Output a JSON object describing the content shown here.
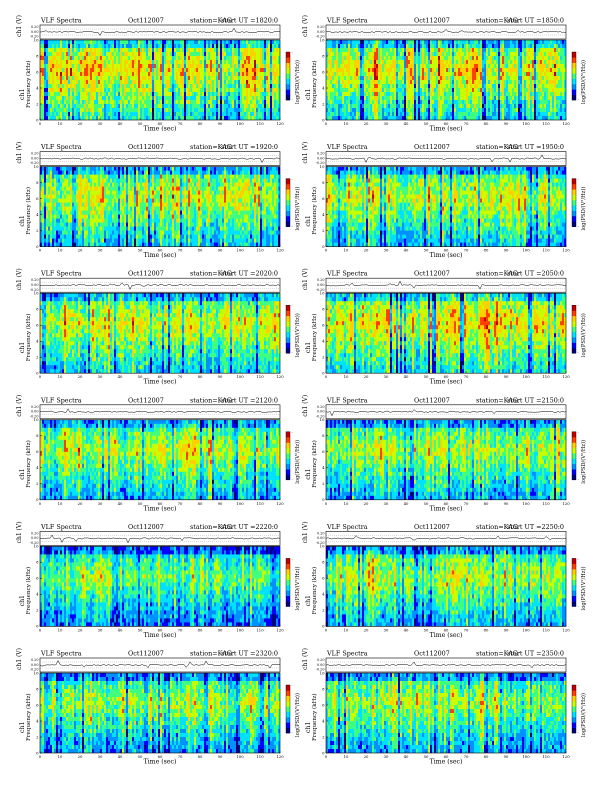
{
  "page": {
    "background": "#ffffff"
  },
  "colors": {
    "colormap": [
      "#00007a",
      "#0000ff",
      "#0090ff",
      "#00e0ff",
      "#40ff80",
      "#c8ff00",
      "#ffd000",
      "#ff4000",
      "#c00000"
    ],
    "trace": "#000000",
    "grid": "#000000"
  },
  "labels": {
    "ch_axis": "ch1 (V)",
    "freq_axis": "Frequency (kHz)",
    "time_axis": "Time (sec)",
    "colorbar_label": "log(PSD/(V²/Hz))",
    "ch_ticks": [
      "0.20",
      "0.00",
      "-0.20"
    ],
    "freq_ticks": [
      "0",
      "2",
      "4",
      "6",
      "8",
      "10"
    ],
    "time_ticks": [
      "0",
      "10",
      "20",
      "30",
      "40",
      "50",
      "60",
      "70",
      "80",
      "90",
      "100",
      "110",
      "120"
    ],
    "cb_tick_top": "-",
    "cb_tick_bottom": "-"
  },
  "chart_data": [
    {
      "type": "heatmap",
      "title_left": "VLF Spectra",
      "date": "Oct112007",
      "station": "station=KAG",
      "start": "start UT =1820:0",
      "xlim": [
        0,
        120
      ],
      "ylim": [
        0,
        10
      ],
      "ch_ylim": [
        -0.2,
        0.2
      ],
      "intensity": [
        0.62,
        0.55,
        0.7,
        0.5,
        0.66,
        0.58,
        0.61,
        0.68,
        0.6,
        0.52,
        0.64,
        0.57
      ]
    },
    {
      "type": "heatmap",
      "title_left": "VLF Spectra",
      "date": "Oct112007",
      "station": "station=KAG",
      "start": "start UT =1850:0",
      "xlim": [
        0,
        120
      ],
      "ylim": [
        0,
        10
      ],
      "ch_ylim": [
        -0.2,
        0.2
      ],
      "intensity": [
        0.5,
        0.58,
        0.66,
        0.52,
        0.6,
        0.63,
        0.55,
        0.69,
        0.57,
        0.5,
        0.62,
        0.56
      ]
    },
    {
      "type": "heatmap",
      "title_left": "VLF Spectra",
      "date": "Oct112007",
      "station": "station=KAG",
      "start": "start UT =1920:0",
      "xlim": [
        0,
        120
      ],
      "ylim": [
        0,
        10
      ],
      "ch_ylim": [
        -0.2,
        0.2
      ],
      "intensity": [
        0.45,
        0.5,
        0.56,
        0.48,
        0.52,
        0.47,
        0.55,
        0.5,
        0.46,
        0.53,
        0.49,
        0.51
      ]
    },
    {
      "type": "heatmap",
      "title_left": "VLF Spectra",
      "date": "Oct112007",
      "station": "station=KAG",
      "start": "start UT =1950:0",
      "xlim": [
        0,
        120
      ],
      "ylim": [
        0,
        10
      ],
      "ch_ylim": [
        -0.2,
        0.2
      ],
      "intensity": [
        0.44,
        0.48,
        0.53,
        0.5,
        0.46,
        0.52,
        0.49,
        0.55,
        0.47,
        0.5,
        0.45,
        0.48
      ]
    },
    {
      "type": "heatmap",
      "title_left": "VLF Spectra",
      "date": "Oct112007",
      "station": "station=KAG",
      "start": "start UT =2020:0",
      "xlim": [
        0,
        120
      ],
      "ylim": [
        0,
        10
      ],
      "ch_ylim": [
        -0.2,
        0.2
      ],
      "intensity": [
        0.5,
        0.55,
        0.52,
        0.6,
        0.57,
        0.54,
        0.58,
        0.62,
        0.53,
        0.56,
        0.51,
        0.55
      ]
    },
    {
      "type": "heatmap",
      "title_left": "VLF Spectra",
      "date": "Oct112007",
      "station": "station=KAG",
      "start": "start UT =2050:0",
      "xlim": [
        0,
        120
      ],
      "ylim": [
        0,
        10
      ],
      "ch_ylim": [
        -0.2,
        0.2
      ],
      "intensity": [
        0.58,
        0.63,
        0.6,
        0.66,
        0.55,
        0.62,
        0.68,
        0.6,
        0.64,
        0.57,
        0.61,
        0.59
      ]
    },
    {
      "type": "heatmap",
      "title_left": "VLF Spectra",
      "date": "Oct112007",
      "station": "station=KAG",
      "start": "start UT =2120:0",
      "xlim": [
        0,
        120
      ],
      "ylim": [
        0,
        10
      ],
      "ch_ylim": [
        -0.2,
        0.2
      ],
      "intensity": [
        0.42,
        0.5,
        0.46,
        0.52,
        0.44,
        0.55,
        0.48,
        0.6,
        0.5,
        0.45,
        0.52,
        0.47
      ]
    },
    {
      "type": "heatmap",
      "title_left": "VLF Spectra",
      "date": "Oct112007",
      "station": "station=KAG",
      "start": "start UT =2150:0",
      "xlim": [
        0,
        120
      ],
      "ylim": [
        0,
        10
      ],
      "ch_ylim": [
        -0.2,
        0.2
      ],
      "intensity": [
        0.38,
        0.45,
        0.5,
        0.42,
        0.46,
        0.52,
        0.44,
        0.48,
        0.4,
        0.5,
        0.43,
        0.46
      ]
    },
    {
      "type": "heatmap",
      "title_left": "VLF Spectra",
      "date": "Oct112007",
      "station": "station=KAG",
      "start": "start UT =2220:0",
      "xlim": [
        0,
        120
      ],
      "ylim": [
        0,
        10
      ],
      "ch_ylim": [
        -0.2,
        0.2
      ],
      "intensity": [
        0.35,
        0.38,
        0.42,
        0.36,
        0.4,
        0.34,
        0.39,
        0.37,
        0.41,
        0.35,
        0.38,
        0.36
      ]
    },
    {
      "type": "heatmap",
      "title_left": "VLF Spectra",
      "date": "Oct112007",
      "station": "station=KAG",
      "start": "start UT =2250:0",
      "xlim": [
        0,
        120
      ],
      "ylim": [
        0,
        10
      ],
      "ch_ylim": [
        -0.2,
        0.2
      ],
      "intensity": [
        0.4,
        0.46,
        0.5,
        0.43,
        0.48,
        0.45,
        0.52,
        0.47,
        0.5,
        0.44,
        0.49,
        0.42
      ]
    },
    {
      "type": "heatmap",
      "title_left": "VLF Spectra",
      "date": "Oct112007",
      "station": "station=KAG",
      "start": "start UT =2320:0",
      "xlim": [
        0,
        120
      ],
      "ylim": [
        0,
        10
      ],
      "ch_ylim": [
        -0.2,
        0.2
      ],
      "intensity": [
        0.36,
        0.42,
        0.48,
        0.4,
        0.45,
        0.39,
        0.44,
        0.41,
        0.46,
        0.38,
        0.43,
        0.4
      ]
    },
    {
      "type": "heatmap",
      "title_left": "VLF Spectra",
      "date": "Oct112007",
      "station": "station=KAG",
      "start": "start UT =2350:0",
      "xlim": [
        0,
        120
      ],
      "ylim": [
        0,
        10
      ],
      "ch_ylim": [
        -0.2,
        0.2
      ],
      "intensity": [
        0.38,
        0.44,
        0.4,
        0.47,
        0.42,
        0.45,
        0.41,
        0.48,
        0.43,
        0.39,
        0.46,
        0.42
      ]
    }
  ]
}
